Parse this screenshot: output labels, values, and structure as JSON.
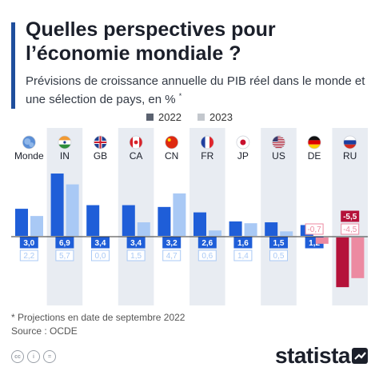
{
  "title": "Quelles perspectives pour l’économie mondiale ?",
  "subtitle": "Prévisions de croissance annuelle du PIB réel dans le monde et une sélection de pays, en %",
  "subtitle_mark": "*",
  "footnote": "* Projections en date de septembre 2022",
  "source": "Source : OCDE",
  "brand": "statista",
  "colors": {
    "pos_2022": "#1f5ed8",
    "pos_2023": "#a9c9f5",
    "neg_2022": "#b5123a",
    "neg_2023": "#ec8aa1",
    "band": "#e8ecf2",
    "title_accent": "#1f4e9c"
  },
  "chart_data": {
    "type": "bar",
    "categories": [
      "Monde",
      "IN",
      "GB",
      "CA",
      "CN",
      "FR",
      "JP",
      "US",
      "DE",
      "RU"
    ],
    "flags": [
      "globe-icon",
      "flag-india-icon",
      "flag-uk-icon",
      "flag-canada-icon",
      "flag-china-icon",
      "flag-france-icon",
      "flag-japan-icon",
      "flag-usa-icon",
      "flag-germany-icon",
      "flag-russia-icon"
    ],
    "series": [
      {
        "name": "2022",
        "values": [
          3.0,
          6.9,
          3.4,
          3.4,
          3.2,
          2.6,
          1.6,
          1.5,
          1.2,
          -5.5
        ],
        "labels": [
          "3,0",
          "6,9",
          "3,4",
          "3,4",
          "3,2",
          "2,6",
          "1,6",
          "1,5",
          "1,2",
          "-5,5"
        ]
      },
      {
        "name": "2023",
        "values": [
          2.2,
          5.7,
          0.0,
          1.5,
          4.7,
          0.6,
          1.4,
          0.5,
          -0.7,
          -4.5
        ],
        "labels": [
          "2,2",
          "5,7",
          "0,0",
          "1,5",
          "4,7",
          "0,6",
          "1,4",
          "0,5",
          "-0,7",
          "-4,5"
        ]
      }
    ],
    "legend_position": "top-center",
    "alternating_bands": true
  }
}
